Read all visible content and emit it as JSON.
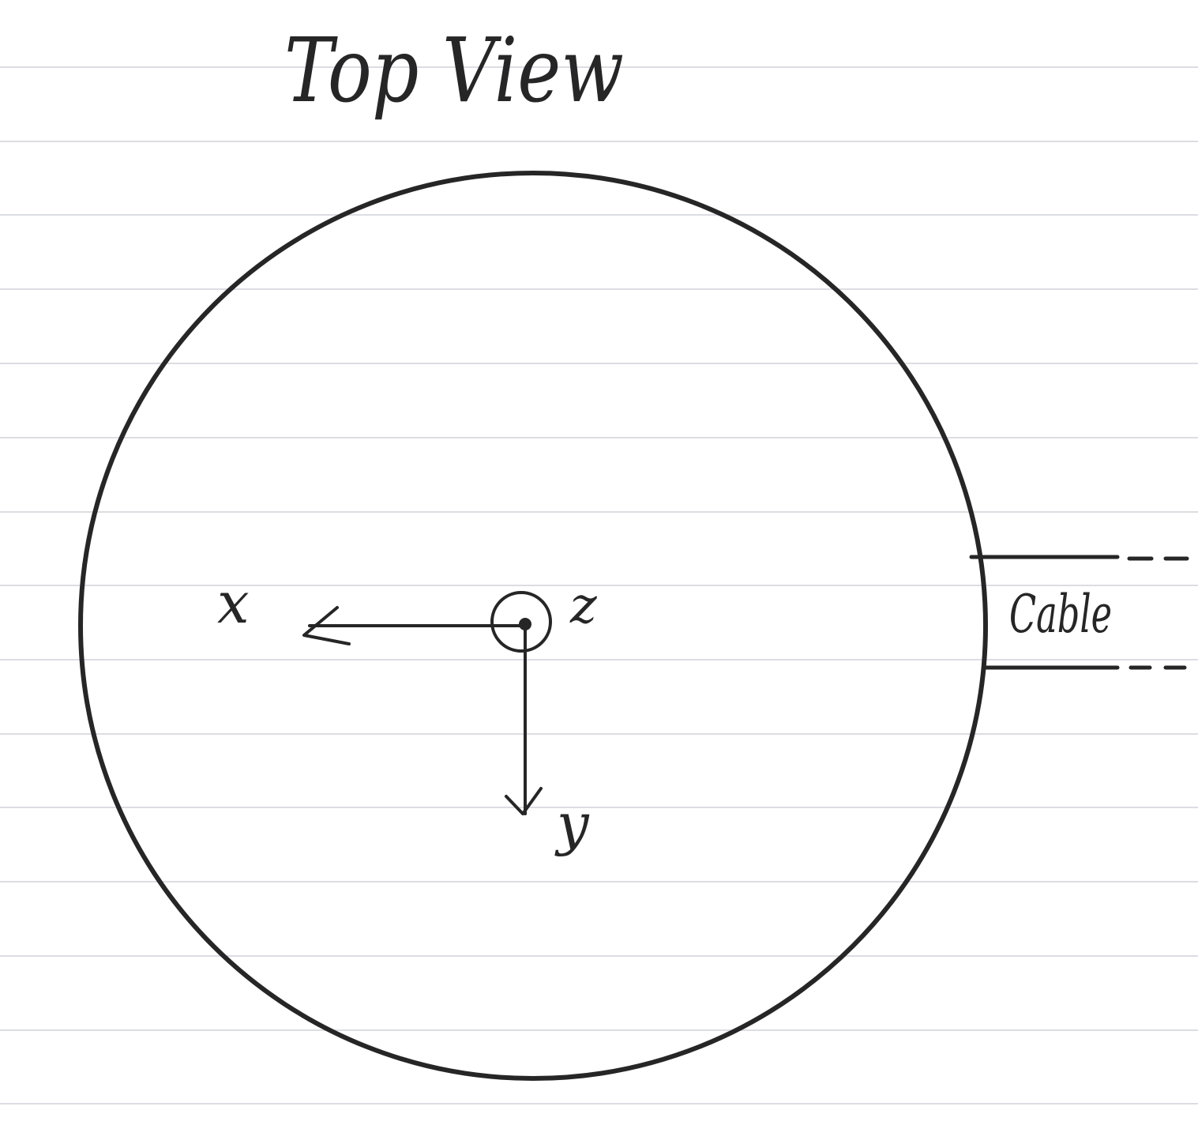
{
  "title": "Top View",
  "labels": {
    "x_axis": "x",
    "y_axis": "y",
    "z_axis": "z",
    "cable": "Cable"
  },
  "colors": {
    "ink": "#262626",
    "ruled_lines": "#dcdde2",
    "paper": "#ffffff"
  }
}
